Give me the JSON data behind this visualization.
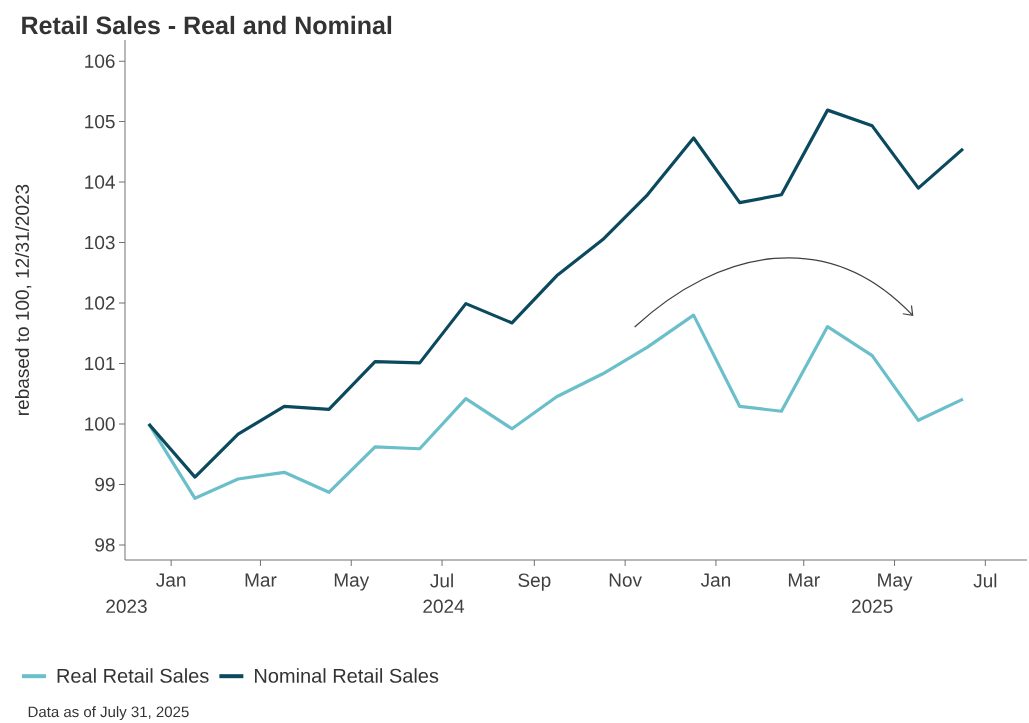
{
  "chart_data": {
    "type": "line",
    "title": "Retail Sales - Real and Nominal",
    "ylabel": "rebased to 100, 12/31/2023",
    "x": [
      "2023-12-31",
      "2024-01-31",
      "2024-02-29",
      "2024-03-31",
      "2024-04-30",
      "2024-05-31",
      "2024-06-30",
      "2024-07-31",
      "2024-08-31",
      "2024-09-30",
      "2024-10-31",
      "2024-11-30",
      "2024-12-31",
      "2025-01-31",
      "2025-02-28",
      "2025-03-31",
      "2025-04-30",
      "2025-05-31",
      "2025-06-30"
    ],
    "series": [
      {
        "name": "Real Retail Sales",
        "color": "#6bbfca",
        "values": [
          100.0,
          98.77,
          99.09,
          99.2,
          98.87,
          99.62,
          99.59,
          100.42,
          99.92,
          100.45,
          100.83,
          101.27,
          101.8,
          100.29,
          100.21,
          101.61,
          101.13,
          100.06,
          100.41
        ]
      },
      {
        "name": "Nominal Retail Sales",
        "color": "#0b4a5e",
        "values": [
          100.0,
          99.12,
          99.83,
          100.29,
          100.24,
          101.03,
          101.01,
          101.99,
          101.67,
          102.45,
          103.05,
          103.79,
          104.73,
          103.66,
          103.79,
          105.19,
          104.93,
          103.9,
          104.55
        ]
      }
    ],
    "xlim": [
      "2023-12-15",
      "2025-08-12"
    ],
    "xticks": [
      {
        "value": "2024-01-15",
        "label": "Jan"
      },
      {
        "value": "2024-03-15",
        "label": "Mar"
      },
      {
        "value": "2024-05-15",
        "label": "May"
      },
      {
        "value": "2024-07-15",
        "label": "Jul"
      },
      {
        "value": "2024-09-15",
        "label": "Sep"
      },
      {
        "value": "2024-11-15",
        "label": "Nov"
      },
      {
        "value": "2025-01-15",
        "label": "Jan"
      },
      {
        "value": "2025-03-15",
        "label": "Mar"
      },
      {
        "value": "2025-05-15",
        "label": "May"
      },
      {
        "value": "2025-07-15",
        "label": "Jul"
      }
    ],
    "x2lim": [
      "2023-12-15",
      "2025-08-12"
    ],
    "x2ticks": [
      {
        "value": "2023-12-16",
        "label": "2023"
      },
      {
        "value": "2024-07-16",
        "label": "2024"
      },
      {
        "value": "2025-04-30",
        "label": "2025"
      }
    ],
    "ylim": [
      97.75,
      106.35
    ],
    "yticks": [
      98,
      99,
      100,
      101,
      102,
      103,
      104,
      105,
      106
    ],
    "legend": "bottom",
    "annotations": [
      "Data as of July 31, 2025"
    ]
  }
}
